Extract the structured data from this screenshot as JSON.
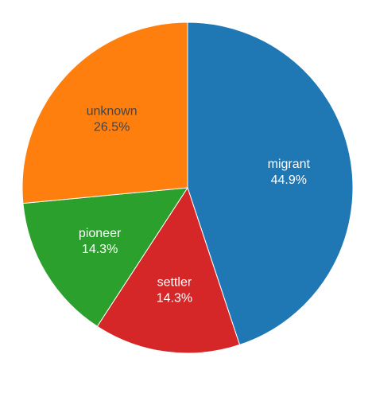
{
  "chart_data": {
    "type": "pie",
    "categories": [
      "migrant",
      "settler",
      "pioneer",
      "unknown"
    ],
    "values": [
      44.9,
      14.3,
      14.3,
      26.5
    ],
    "percent_labels": [
      "44.9%",
      "14.3%",
      "14.3%",
      "26.5%"
    ],
    "colors": [
      "#1f77b4",
      "#d62728",
      "#2ca02c",
      "#ff7f0e"
    ],
    "label_colors": [
      "#ffffff",
      "#ffffff",
      "#ffffff",
      "#444444"
    ],
    "start": "top",
    "direction": "clockwise",
    "legend": "none"
  }
}
